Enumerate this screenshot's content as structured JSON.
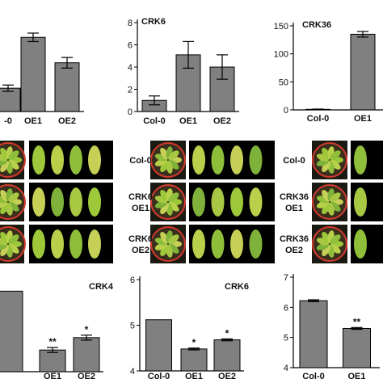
{
  "chart_data": [
    {
      "type": "bar",
      "title": "",
      "categories": [
        "-0",
        "OE1",
        "OE2"
      ],
      "values": [
        2.2,
        7.0,
        4.6
      ],
      "errors": [
        0.3,
        0.4,
        0.5
      ],
      "ylim": [
        0,
        9
      ],
      "yticks": [],
      "significance": [
        "",
        "",
        ""
      ]
    },
    {
      "type": "bar",
      "title": "CRK6",
      "categories": [
        "Col-0",
        "OE1",
        "OE2"
      ],
      "values": [
        1.0,
        5.1,
        4.0
      ],
      "errors": [
        0.4,
        1.2,
        1.1
      ],
      "ylim": [
        0,
        8
      ],
      "yticks": [
        "0",
        "2",
        "4",
        "6",
        "8"
      ],
      "significance": [
        "",
        "",
        ""
      ]
    },
    {
      "type": "bar",
      "title": "CRK36",
      "categories": [
        "Col-0",
        "OE1"
      ],
      "values": [
        1,
        135
      ],
      "errors": [
        0.5,
        5
      ],
      "ylim": [
        0,
        150
      ],
      "yticks": [
        "0",
        "50",
        "100",
        "150"
      ],
      "significance": [
        "",
        ""
      ]
    },
    {
      "type": "bar",
      "title": "CRK4",
      "categories": [
        "",
        "OE1",
        "OE2"
      ],
      "values": [
        5.9,
        4.95,
        5.15
      ],
      "errors": [
        0.0,
        0.04,
        0.04
      ],
      "ylim": [
        4.6,
        6.1
      ],
      "yticks": [],
      "significance": [
        "",
        "**",
        "*"
      ]
    },
    {
      "type": "bar",
      "title": "CRK6",
      "categories": [
        "Col-0",
        "OE1",
        "OE2"
      ],
      "values": [
        5.12,
        4.48,
        4.68
      ],
      "errors": [
        0.0,
        0.02,
        0.02
      ],
      "ylim": [
        4,
        6
      ],
      "yticks": [
        "4",
        "5",
        "6"
      ],
      "significance": [
        "",
        "*",
        "*"
      ]
    },
    {
      "type": "bar",
      "title": "",
      "categories": [
        "Col-0",
        "OE1"
      ],
      "values": [
        6.22,
        5.3
      ],
      "errors": [
        0.03,
        0.03
      ],
      "ylim": [
        4,
        7
      ],
      "yticks": [
        "4",
        "5",
        "6",
        "7"
      ],
      "significance": [
        "",
        "**"
      ]
    }
  ],
  "photo_panels": [
    {
      "rows": [
        {
          "label_lines": []
        },
        {
          "label_lines": []
        },
        {
          "label_lines": []
        }
      ]
    },
    {
      "rows": [
        {
          "label_lines": [
            "Col-0"
          ]
        },
        {
          "label_lines": [
            "CRK6",
            "OE1"
          ]
        },
        {
          "label_lines": [
            "CRK6",
            "OE2"
          ]
        }
      ]
    },
    {
      "rows": [
        {
          "label_lines": [
            "Col-0"
          ]
        },
        {
          "label_lines": [
            "CRK36",
            "OE1"
          ]
        },
        {
          "label_lines": [
            "CRK36",
            "OE2"
          ]
        }
      ]
    }
  ],
  "colors": {
    "bar": "#808080",
    "axis": "#000000",
    "leaf_bg": "#000000",
    "pot_ring": "#d43a2f"
  }
}
